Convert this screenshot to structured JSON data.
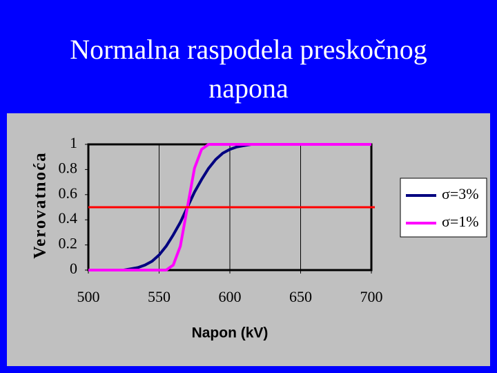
{
  "chart_data": {
    "type": "line",
    "title": "Normalna raspodela preskočnog napona",
    "x_label": "Napon (kV)",
    "y_label": "Verovatnoća",
    "x": [
      500,
      505,
      510,
      515,
      520,
      525,
      530,
      535,
      540,
      545,
      550,
      555,
      560,
      565,
      570,
      575,
      580,
      585,
      590,
      595,
      600,
      605,
      610,
      615,
      620,
      625,
      630,
      635,
      640,
      645,
      650,
      655,
      660,
      665,
      670,
      675,
      680,
      685,
      690,
      695,
      700
    ],
    "series": [
      {
        "name": "σ=3%",
        "color": "#000080",
        "values": [
          null,
          null,
          null,
          null,
          null,
          0,
          0.01,
          0.02,
          0.04,
          0.07,
          0.12,
          0.19,
          0.28,
          0.38,
          0.5,
          0.62,
          0.72,
          0.81,
          0.88,
          0.93,
          0.96,
          0.98,
          0.99,
          1,
          null,
          null,
          null,
          null,
          null,
          null,
          null,
          null,
          null,
          null,
          null,
          null,
          null,
          null,
          null,
          null,
          null
        ]
      },
      {
        "name": "σ=1%",
        "color": "#ff00ff",
        "values": [
          0,
          0,
          0,
          0,
          0,
          0,
          0,
          0,
          0,
          0,
          0,
          0,
          0.04,
          0.19,
          0.5,
          0.81,
          0.96,
          1,
          1,
          1,
          1,
          1,
          1,
          1,
          1,
          1,
          1,
          1,
          1,
          1,
          1,
          1,
          1,
          1,
          1,
          1,
          1,
          1,
          1,
          1,
          1
        ]
      }
    ],
    "hline": {
      "value": 0.5,
      "color": "#ff0000"
    },
    "xlim": [
      500,
      700
    ],
    "xticks": [
      500,
      550,
      600,
      650,
      700
    ],
    "ylim": [
      0,
      1
    ],
    "yticks": [
      0,
      0.2,
      0.4,
      0.6,
      0.8,
      1
    ],
    "grid": "x",
    "legend": "right"
  }
}
